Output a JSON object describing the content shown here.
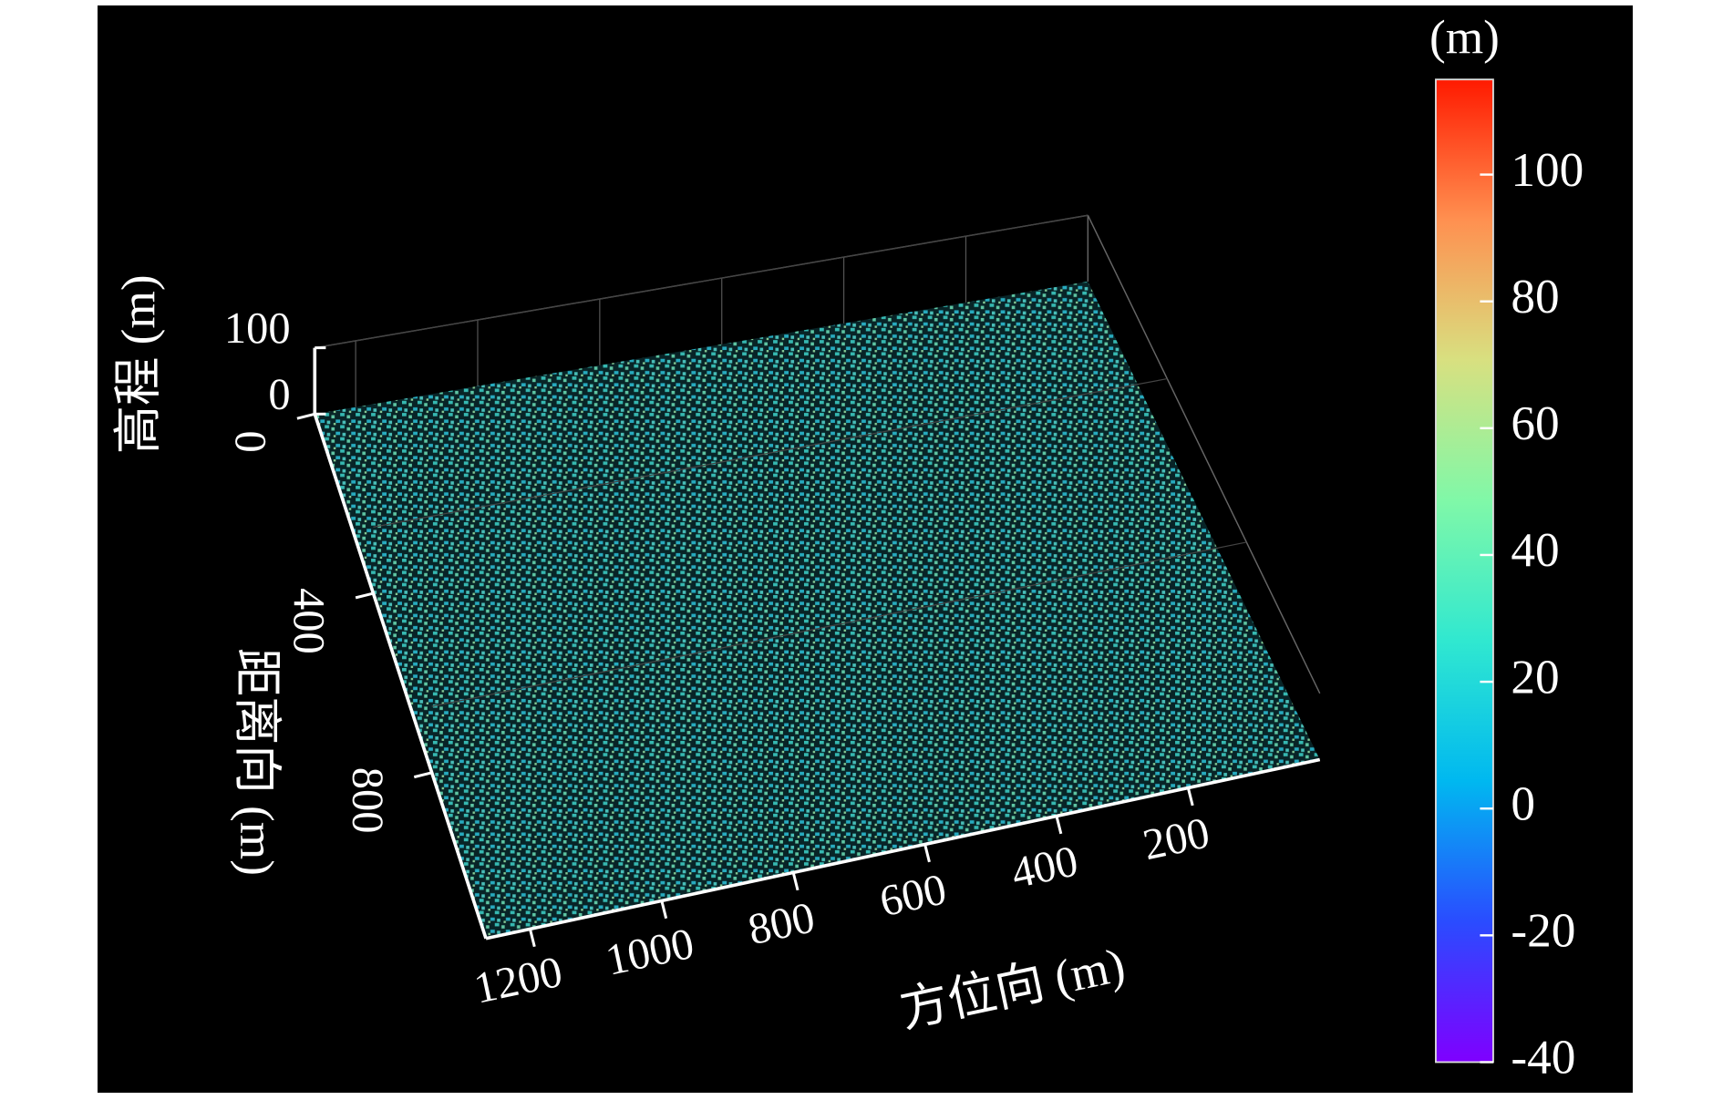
{
  "chart_data": {
    "type": "scatter3d",
    "xlabel": "方位向 (m)",
    "ylabel": "距离向 (m)",
    "zlabel": "高程 (m)",
    "xlim": [
      0,
      1267
    ],
    "xticks": [
      200,
      400,
      600,
      800,
      1000,
      1200
    ],
    "ylim": [
      0,
      1170
    ],
    "yticks": [
      0,
      400,
      800
    ],
    "zlim": [
      0,
      100
    ],
    "zticks": [
      0,
      100
    ],
    "colorbar": {
      "label": "(m)",
      "clim": [
        -40,
        115
      ],
      "ticks": [
        -40,
        -20,
        0,
        20,
        40,
        60,
        80,
        100
      ],
      "colormap": "rainbow"
    },
    "grid": true
  }
}
